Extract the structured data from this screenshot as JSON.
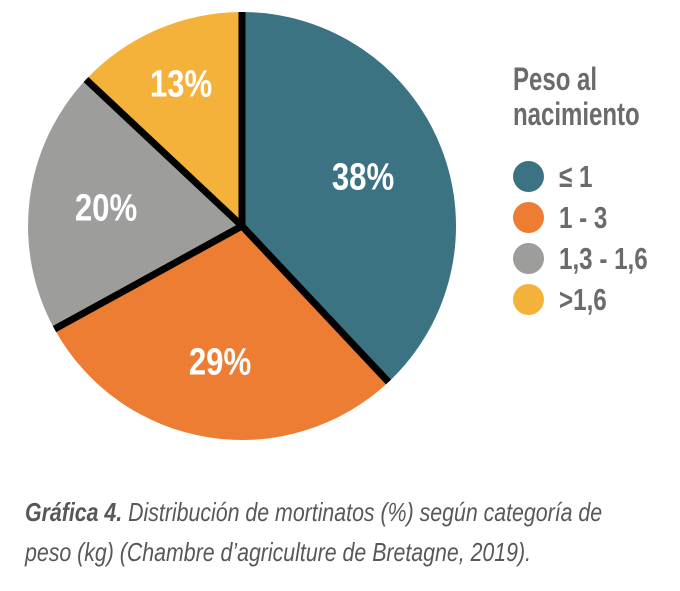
{
  "chart_data": {
    "type": "pie",
    "legend_title": "Peso al nacimiento",
    "categories": [
      "≤ 1",
      "1 - 3",
      "1,3 - 1,6",
      ">1,6"
    ],
    "values": [
      38,
      29,
      20,
      13
    ],
    "data_labels": [
      "38%",
      "29%",
      "20%",
      "13%"
    ],
    "colors": [
      "#3C7383",
      "#EC7D33",
      "#9D9D9C",
      "#F5B23B"
    ],
    "separator_color": "#000000",
    "separator_width": 7,
    "data_label_color": "#FFFFFF",
    "start_angle_deg": 0,
    "direction": "clockwise",
    "legend_position": "right",
    "label_radius": [
      0.61,
      0.65,
      0.64,
      0.72
    ]
  },
  "caption": {
    "prefix": "Gráfica 4.",
    "line1": "Distribución de mortinatos (%) según categoría de",
    "line2": "peso (kg) (Chambre d’agriculture de Bretagne, 2019).",
    "color": "#57585A"
  }
}
